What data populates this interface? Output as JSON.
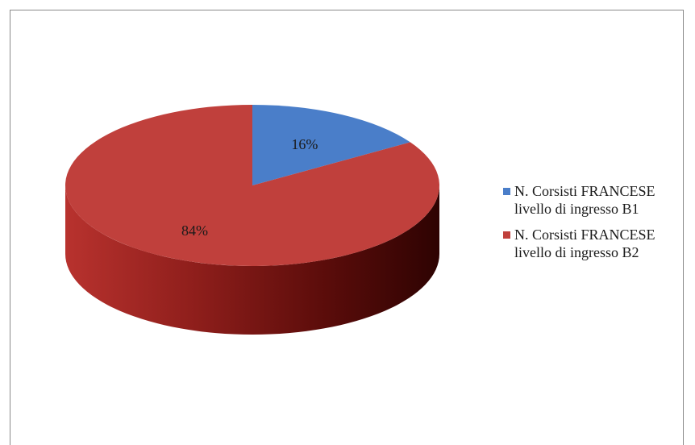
{
  "chart_data": {
    "type": "pie",
    "title": "",
    "style": "3d",
    "categories": [
      "N. Corsisti FRANCESE livello di ingresso B1",
      "N. Corsisti FRANCESE livello di ingresso B2"
    ],
    "values": [
      16,
      84
    ],
    "labels": [
      "16%",
      "84%"
    ],
    "colors": [
      "#4a7ec9",
      "#c0403c"
    ],
    "legend_position": "right"
  }
}
